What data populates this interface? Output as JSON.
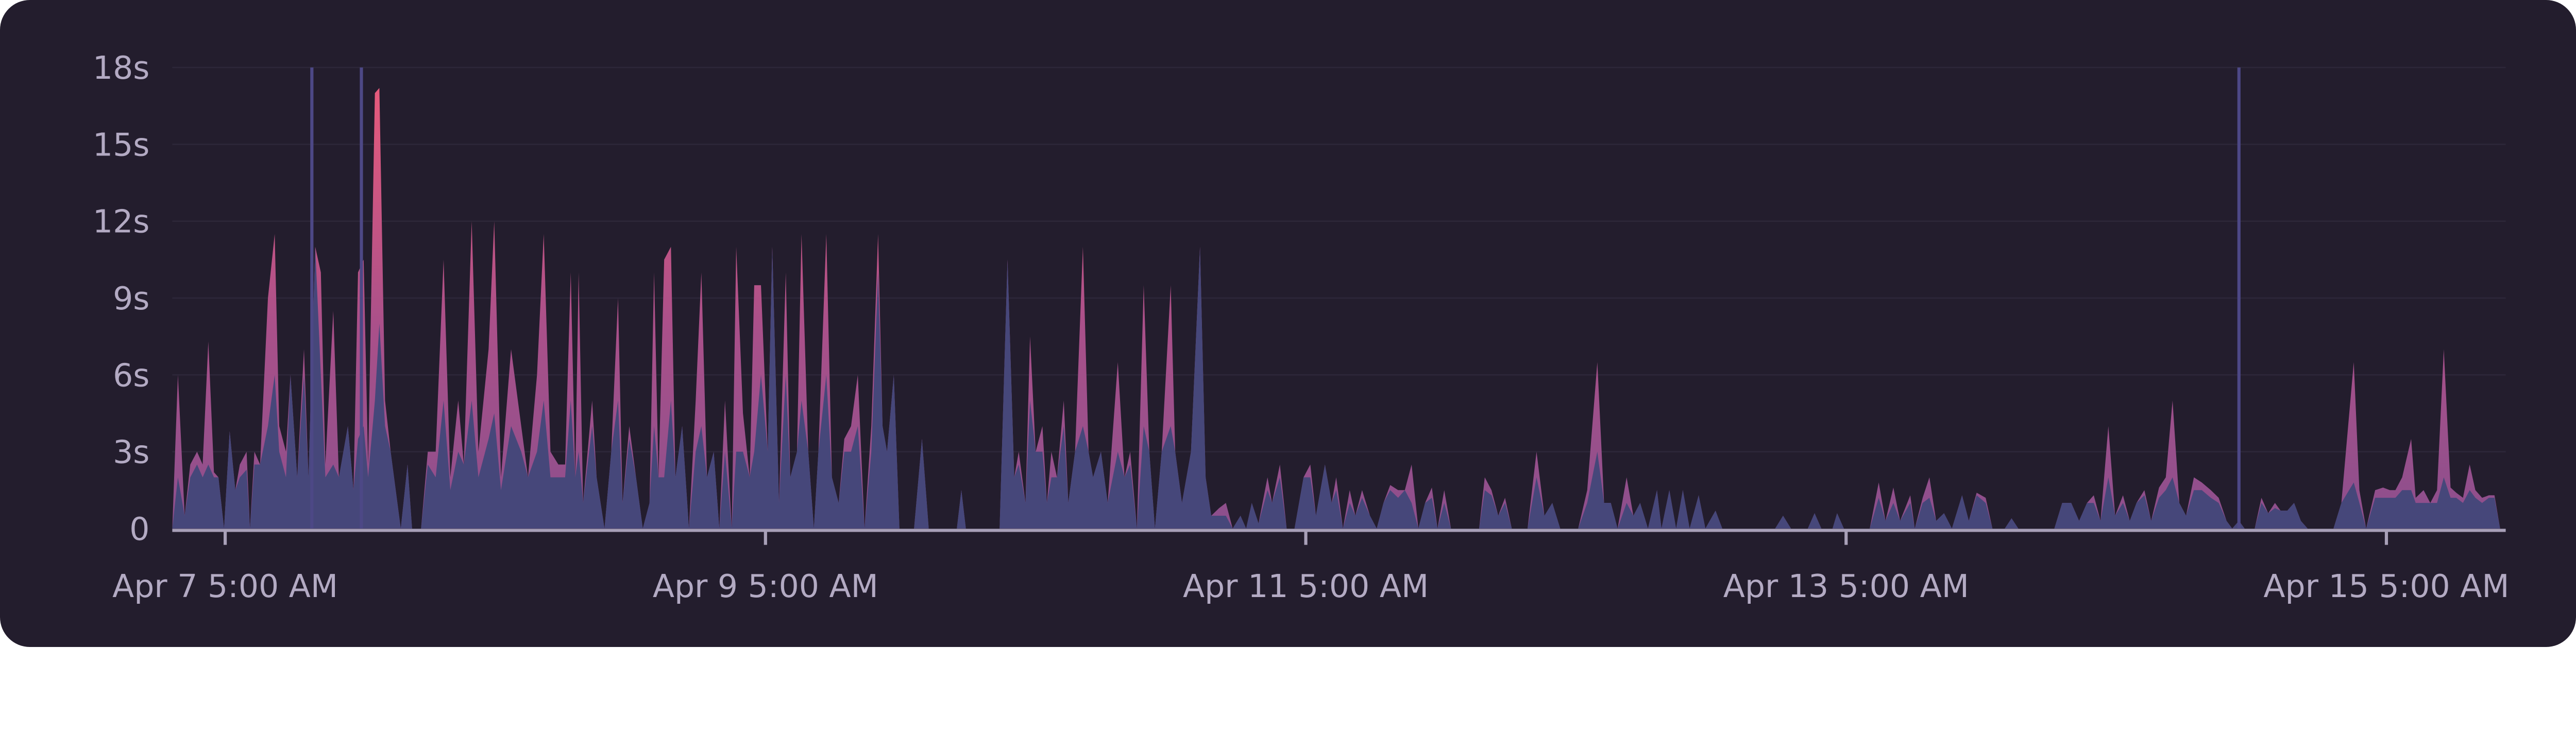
{
  "chart_data": {
    "type": "area",
    "title": "",
    "xlabel": "",
    "ylabel": "",
    "x_unit": "hours since Apr 7 5:00 AM",
    "xlim": [
      -4.7,
      202.6
    ],
    "ylim": [
      0,
      18
    ],
    "grid": true,
    "y_ticks": [
      {
        "v": 0,
        "label": "0"
      },
      {
        "v": 3,
        "label": "3s"
      },
      {
        "v": 6,
        "label": "6s"
      },
      {
        "v": 9,
        "label": "9s"
      },
      {
        "v": 12,
        "label": "12s"
      },
      {
        "v": 15,
        "label": "15s"
      },
      {
        "v": 18,
        "label": "18s"
      }
    ],
    "x_ticks": [
      {
        "v": 0,
        "label": "Apr 7 5:00 AM"
      },
      {
        "v": 48,
        "label": "Apr 9 5:00 AM"
      },
      {
        "v": 96,
        "label": "Apr 11 5:00 AM"
      },
      {
        "v": 144,
        "label": "Apr 13 5:00 AM"
      },
      {
        "v": 192,
        "label": "Apr 15 5:00 AM"
      }
    ],
    "markers": [
      7.7,
      12.1,
      178.9
    ],
    "colors": {
      "background": "#231d2d",
      "base": "#46477a",
      "top": "#e65a7c",
      "mid": "#8c4f8c",
      "marker": "#4d4886",
      "axis": "#a8a0b8",
      "grid": "#2d2739"
    },
    "series_fields": [
      "hours",
      "base_seconds",
      "total_seconds"
    ],
    "points": [
      [
        -4.7,
        0,
        0
      ],
      [
        -4.2,
        2,
        6
      ],
      [
        -3.6,
        0.5,
        0.5
      ],
      [
        -3.1,
        2,
        2.5
      ],
      [
        -2.5,
        2.5,
        3
      ],
      [
        -2.0,
        2,
        2.5
      ],
      [
        -1.5,
        2.5,
        7.3
      ],
      [
        -1.0,
        2,
        2.2
      ],
      [
        -0.6,
        2,
        2
      ],
      [
        -0.1,
        0,
        0
      ],
      [
        0.4,
        3.8,
        3.8
      ],
      [
        0.9,
        1.5,
        1.5
      ],
      [
        1.3,
        2,
        2.5
      ],
      [
        1.9,
        2.3,
        3
      ],
      [
        2.2,
        0,
        0
      ],
      [
        2.6,
        2.5,
        3
      ],
      [
        3.1,
        2.5,
        2.5
      ],
      [
        3.8,
        4,
        9
      ],
      [
        4.4,
        6,
        11.5
      ],
      [
        4.8,
        3,
        4
      ],
      [
        5.4,
        2,
        3
      ],
      [
        5.8,
        6,
        6
      ],
      [
        6.4,
        2,
        2
      ],
      [
        7.0,
        6,
        7
      ],
      [
        7.4,
        2,
        2
      ],
      [
        8.0,
        11,
        11
      ],
      [
        8.5,
        6,
        10
      ],
      [
        8.9,
        2,
        2.5
      ],
      [
        9.6,
        2.5,
        8.5
      ],
      [
        10.1,
        2,
        2
      ],
      [
        10.5,
        3,
        3
      ],
      [
        10.9,
        4,
        4
      ],
      [
        11.4,
        1.5,
        1.5
      ],
      [
        11.8,
        3.5,
        10
      ],
      [
        12.3,
        4,
        10.5
      ],
      [
        12.7,
        2,
        2.5
      ],
      [
        13.3,
        5,
        17
      ],
      [
        13.7,
        8,
        17.2
      ],
      [
        14.2,
        4,
        5
      ],
      [
        14.7,
        3,
        3
      ],
      [
        15.6,
        0,
        0
      ],
      [
        16.2,
        2.5,
        2.5
      ],
      [
        16.6,
        0,
        0
      ],
      [
        17.4,
        0,
        0
      ],
      [
        18.0,
        2.5,
        3
      ],
      [
        18.7,
        2,
        3
      ],
      [
        19.4,
        5,
        10.5
      ],
      [
        20.0,
        1.5,
        2
      ],
      [
        20.7,
        3,
        5
      ],
      [
        21.2,
        2.5,
        2.5
      ],
      [
        21.9,
        5,
        12
      ],
      [
        22.5,
        2,
        3
      ],
      [
        23.4,
        3.5,
        7
      ],
      [
        23.9,
        4.5,
        12
      ],
      [
        24.5,
        1.5,
        2
      ],
      [
        25.4,
        4,
        7
      ],
      [
        26.3,
        3,
        4
      ],
      [
        26.9,
        2,
        2
      ],
      [
        27.7,
        3,
        6
      ],
      [
        28.3,
        5,
        11.5
      ],
      [
        28.9,
        2,
        3
      ],
      [
        29.6,
        2,
        2.5
      ],
      [
        30.2,
        2,
        2.5
      ],
      [
        30.7,
        5,
        10
      ],
      [
        31.1,
        2,
        2
      ],
      [
        31.4,
        3,
        10
      ],
      [
        31.8,
        1,
        1
      ],
      [
        32.6,
        4,
        5
      ],
      [
        33.0,
        2,
        2
      ],
      [
        33.7,
        0,
        0
      ],
      [
        34.3,
        3,
        3
      ],
      [
        34.9,
        5,
        9
      ],
      [
        35.3,
        1,
        1
      ],
      [
        35.9,
        3.5,
        4
      ],
      [
        36.5,
        2,
        2
      ],
      [
        37.1,
        0,
        0
      ],
      [
        37.7,
        1,
        1
      ],
      [
        38.1,
        4,
        10
      ],
      [
        38.5,
        2,
        2
      ],
      [
        39.0,
        2,
        10.5
      ],
      [
        39.6,
        5,
        11
      ],
      [
        40.0,
        2,
        2
      ],
      [
        40.6,
        4,
        4
      ],
      [
        41.2,
        0,
        0
      ],
      [
        41.8,
        3,
        5
      ],
      [
        42.3,
        4,
        10
      ],
      [
        42.8,
        2,
        2
      ],
      [
        43.4,
        3,
        3
      ],
      [
        43.9,
        0,
        0
      ],
      [
        44.4,
        3,
        5
      ],
      [
        45.0,
        0,
        0
      ],
      [
        45.4,
        3,
        11
      ],
      [
        46.0,
        3,
        4.5
      ],
      [
        46.6,
        2,
        2
      ],
      [
        47.0,
        3,
        9.5
      ],
      [
        47.6,
        6,
        9.5
      ],
      [
        48.2,
        3,
        3
      ],
      [
        48.6,
        11,
        11
      ],
      [
        49.2,
        1,
        1
      ],
      [
        49.8,
        6,
        10
      ],
      [
        50.2,
        2,
        2
      ],
      [
        50.8,
        3,
        3
      ],
      [
        51.2,
        5,
        11.5
      ],
      [
        51.8,
        3,
        3
      ],
      [
        52.3,
        0,
        0
      ],
      [
        52.7,
        3,
        3
      ],
      [
        53.4,
        6,
        11.5
      ],
      [
        53.9,
        2,
        2
      ],
      [
        54.5,
        1,
        1
      ],
      [
        55.0,
        3,
        3.5
      ],
      [
        55.6,
        3,
        4
      ],
      [
        56.2,
        4,
        6
      ],
      [
        56.8,
        0,
        0
      ],
      [
        57.4,
        3,
        4
      ],
      [
        58.0,
        10,
        11.5
      ],
      [
        58.4,
        4,
        4
      ],
      [
        58.8,
        3,
        3
      ],
      [
        59.4,
        6,
        6
      ],
      [
        59.9,
        0,
        0
      ],
      [
        61.2,
        0,
        0
      ],
      [
        61.9,
        3.5,
        3.5
      ],
      [
        62.5,
        0,
        0
      ],
      [
        65.0,
        0,
        0
      ],
      [
        65.4,
        1.5,
        1.5
      ],
      [
        65.8,
        0,
        0
      ],
      [
        68.8,
        0,
        0
      ],
      [
        69.5,
        10.5,
        10.5
      ],
      [
        70.1,
        2,
        2
      ],
      [
        70.5,
        2.5,
        3
      ],
      [
        71.1,
        1,
        1
      ],
      [
        71.5,
        5,
        7.5
      ],
      [
        72.0,
        3,
        3
      ],
      [
        72.6,
        3,
        4
      ],
      [
        73.0,
        1,
        1
      ],
      [
        73.4,
        2,
        3
      ],
      [
        73.9,
        2,
        2
      ],
      [
        74.5,
        4,
        5
      ],
      [
        74.9,
        1,
        1
      ],
      [
        75.5,
        3,
        3
      ],
      [
        76.2,
        4,
        11
      ],
      [
        76.7,
        3,
        3
      ],
      [
        77.1,
        2,
        2
      ],
      [
        77.8,
        3,
        3
      ],
      [
        78.4,
        1,
        1
      ],
      [
        79.3,
        3,
        6.5
      ],
      [
        79.9,
        2,
        2
      ],
      [
        80.4,
        2.5,
        3
      ],
      [
        81.0,
        0,
        0
      ],
      [
        81.6,
        4,
        9.5
      ],
      [
        82.1,
        3,
        3
      ],
      [
        82.6,
        0,
        0
      ],
      [
        83.2,
        3,
        3
      ],
      [
        84.0,
        4,
        9.5
      ],
      [
        84.4,
        3,
        3
      ],
      [
        85.0,
        1,
        1
      ],
      [
        85.8,
        3,
        3
      ],
      [
        86.6,
        11,
        11
      ],
      [
        87.1,
        2,
        2
      ],
      [
        87.6,
        0.5,
        0.5
      ],
      [
        88.3,
        0.5,
        0.8
      ],
      [
        88.9,
        0.5,
        1
      ],
      [
        89.5,
        0,
        0
      ],
      [
        90.2,
        0.5,
        0.5
      ],
      [
        90.7,
        0,
        0
      ],
      [
        91.2,
        1,
        1
      ],
      [
        91.8,
        0.2,
        0.2
      ],
      [
        92.6,
        1.5,
        2
      ],
      [
        93.0,
        1,
        1
      ],
      [
        93.7,
        2,
        2.5
      ],
      [
        94.3,
        0,
        0
      ],
      [
        95.0,
        0,
        0
      ],
      [
        95.8,
        2,
        2
      ],
      [
        96.4,
        2,
        2.5
      ],
      [
        96.9,
        0.5,
        0.5
      ],
      [
        97.7,
        2.5,
        2.5
      ],
      [
        98.3,
        1,
        1
      ],
      [
        98.7,
        1.5,
        2
      ],
      [
        99.3,
        0,
        0
      ],
      [
        99.9,
        1,
        1.5
      ],
      [
        100.4,
        0.5,
        0.5
      ],
      [
        101.0,
        1.2,
        1.5
      ],
      [
        101.7,
        0.5,
        0.5
      ],
      [
        102.3,
        0,
        0
      ],
      [
        102.9,
        1,
        1
      ],
      [
        103.5,
        1.5,
        1.7
      ],
      [
        104.2,
        1.2,
        1.5
      ],
      [
        104.8,
        1.5,
        1.5
      ],
      [
        105.4,
        1,
        2.5
      ],
      [
        106.0,
        0,
        0
      ],
      [
        106.6,
        1,
        1
      ],
      [
        107.2,
        1.2,
        1.6
      ],
      [
        107.7,
        0,
        0
      ],
      [
        108.3,
        1,
        1.5
      ],
      [
        108.9,
        0,
        0
      ],
      [
        109.3,
        0,
        0
      ],
      [
        111.4,
        0,
        0
      ],
      [
        111.9,
        1.5,
        2
      ],
      [
        112.5,
        1.3,
        1.5
      ],
      [
        113.1,
        0.5,
        0.5
      ],
      [
        113.7,
        1,
        1.2
      ],
      [
        114.3,
        0,
        0
      ],
      [
        115.7,
        0,
        0
      ],
      [
        116.5,
        2,
        3
      ],
      [
        117.2,
        0.5,
        0.5
      ],
      [
        117.9,
        1,
        1
      ],
      [
        118.6,
        0,
        0
      ],
      [
        120.2,
        0,
        0
      ],
      [
        121.0,
        1,
        1.5
      ],
      [
        121.9,
        3,
        6.5
      ],
      [
        122.5,
        1,
        1
      ],
      [
        123.1,
        1,
        1
      ],
      [
        123.7,
        0,
        0
      ],
      [
        124.5,
        1,
        2
      ],
      [
        125.1,
        0.5,
        0.5
      ],
      [
        125.7,
        1,
        1
      ],
      [
        126.4,
        0,
        0
      ],
      [
        127.2,
        1.5,
        1.5
      ],
      [
        127.6,
        0,
        0
      ],
      [
        128.3,
        1.5,
        1.5
      ],
      [
        128.9,
        0,
        0
      ],
      [
        129.5,
        1.5,
        1.5
      ],
      [
        130.1,
        0,
        0
      ],
      [
        130.9,
        1.3,
        1.3
      ],
      [
        131.5,
        0,
        0
      ],
      [
        132.4,
        0.7,
        0.7
      ],
      [
        133.0,
        0,
        0
      ],
      [
        137.7,
        0,
        0
      ],
      [
        138.4,
        0.5,
        0.5
      ],
      [
        139.1,
        0,
        0
      ],
      [
        140.6,
        0,
        0
      ],
      [
        141.2,
        0.6,
        0.6
      ],
      [
        141.8,
        0,
        0
      ],
      [
        142.8,
        0,
        0
      ],
      [
        143.2,
        0.6,
        0.6
      ],
      [
        143.8,
        0,
        0
      ],
      [
        146.1,
        0,
        0
      ],
      [
        146.9,
        1.2,
        1.8
      ],
      [
        147.5,
        0.3,
        0.3
      ],
      [
        148.2,
        1,
        1.6
      ],
      [
        148.8,
        0.3,
        0.3
      ],
      [
        149.7,
        1,
        1.3
      ],
      [
        150.1,
        0,
        0
      ],
      [
        150.8,
        1,
        1.2
      ],
      [
        151.4,
        1.2,
        2
      ],
      [
        152.0,
        0.3,
        0.3
      ],
      [
        152.7,
        0.6,
        0.6
      ],
      [
        153.4,
        0,
        0
      ],
      [
        154.3,
        1.3,
        1.3
      ],
      [
        154.9,
        0.3,
        0.3
      ],
      [
        155.6,
        1.3,
        1.4
      ],
      [
        156.4,
        1,
        1.2
      ],
      [
        157.0,
        0,
        0
      ],
      [
        158.1,
        0,
        0
      ],
      [
        158.7,
        0.4,
        0.4
      ],
      [
        159.3,
        0,
        0
      ],
      [
        162.5,
        0,
        0
      ],
      [
        163.2,
        1,
        1
      ],
      [
        164.0,
        1,
        1
      ],
      [
        164.7,
        0.3,
        0.3
      ],
      [
        165.4,
        1,
        1
      ],
      [
        166.0,
        1,
        1.3
      ],
      [
        166.6,
        0.3,
        0.3
      ],
      [
        167.3,
        2,
        4
      ],
      [
        167.9,
        0.5,
        0.5
      ],
      [
        168.6,
        1,
        1.3
      ],
      [
        169.2,
        0.3,
        0.3
      ],
      [
        169.8,
        1,
        1
      ],
      [
        170.5,
        1.3,
        1.5
      ],
      [
        171.1,
        0.3,
        0.3
      ],
      [
        171.8,
        1.2,
        1.6
      ],
      [
        172.4,
        1.5,
        2
      ],
      [
        173.0,
        2,
        5
      ],
      [
        173.6,
        1,
        1
      ],
      [
        174.2,
        0.5,
        0.5
      ],
      [
        174.9,
        1.5,
        2
      ],
      [
        175.6,
        1.5,
        1.8
      ],
      [
        176.4,
        1.2,
        1.5
      ],
      [
        177.1,
        1,
        1.2
      ],
      [
        177.8,
        0.3,
        0.3
      ],
      [
        178.3,
        0,
        0
      ],
      [
        178.9,
        0.3,
        0.3
      ],
      [
        179.4,
        0,
        0
      ],
      [
        180.3,
        0,
        0
      ],
      [
        180.9,
        1,
        1.2
      ],
      [
        181.5,
        0.6,
        0.6
      ],
      [
        182.1,
        0.8,
        1
      ],
      [
        182.6,
        0.7,
        0.7
      ],
      [
        183.2,
        0.7,
        0.7
      ],
      [
        183.8,
        1,
        1
      ],
      [
        184.4,
        0.3,
        0.3
      ],
      [
        185.0,
        0,
        0
      ],
      [
        187.3,
        0,
        0
      ],
      [
        188.0,
        1,
        1
      ],
      [
        189.1,
        1.8,
        6.5
      ],
      [
        189.6,
        1,
        1.5
      ],
      [
        190.2,
        0,
        0
      ],
      [
        191.0,
        1.2,
        1.5
      ],
      [
        191.7,
        1.2,
        1.6
      ],
      [
        192.3,
        1.2,
        1.5
      ],
      [
        192.8,
        1.2,
        1.5
      ],
      [
        193.4,
        1.5,
        2
      ],
      [
        194.2,
        1.5,
        3.5
      ],
      [
        194.6,
        1,
        1.2
      ],
      [
        195.3,
        1,
        1.5
      ],
      [
        195.9,
        1,
        1
      ],
      [
        196.5,
        1,
        1.5
      ],
      [
        197.1,
        2,
        7
      ],
      [
        197.7,
        1.2,
        1.6
      ],
      [
        198.2,
        1.2,
        1.4
      ],
      [
        198.8,
        1,
        1.2
      ],
      [
        199.4,
        1.5,
        2.5
      ],
      [
        199.9,
        1.2,
        1.5
      ],
      [
        200.5,
        1,
        1.2
      ],
      [
        201.1,
        1.2,
        1.3
      ],
      [
        201.6,
        1.2,
        1.3
      ],
      [
        202.1,
        0,
        0
      ]
    ]
  }
}
